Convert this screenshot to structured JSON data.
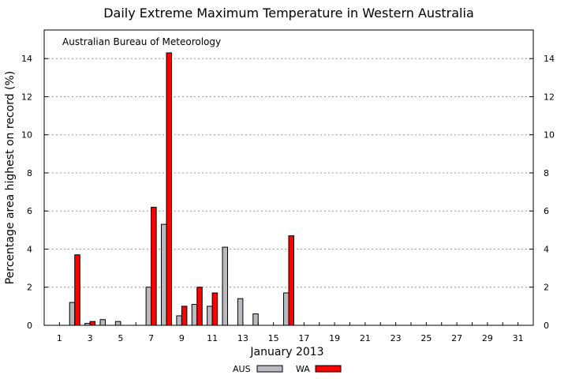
{
  "chart_data": {
    "type": "bar",
    "title": "Daily Extreme Maximum Temperature in Western Australia",
    "annotation": "Australian Bureau of Meteorology",
    "xlabel": "January 2013",
    "ylabel": "Percentage area highest on record (%)",
    "ylim": [
      0,
      15.5
    ],
    "yticks": [
      0,
      2,
      4,
      6,
      8,
      10,
      12,
      14
    ],
    "yticks_right": true,
    "grid": "horizontal dotted",
    "legend_position": "bottom-center",
    "categories": [
      1,
      2,
      3,
      4,
      5,
      6,
      7,
      8,
      9,
      10,
      11,
      12,
      13,
      14,
      15,
      16,
      17,
      18,
      19,
      20,
      21,
      22,
      23,
      24,
      25,
      26,
      27,
      28,
      29,
      30,
      31
    ],
    "xtick_labels": [
      "1",
      "3",
      "5",
      "7",
      "9",
      "11",
      "13",
      "15",
      "17",
      "19",
      "21",
      "23",
      "25",
      "27",
      "29",
      "31"
    ],
    "series": [
      {
        "name": "AUS",
        "color": "#b9b9c0",
        "values": [
          0,
          1.2,
          0.1,
          0.3,
          0.2,
          0,
          2.0,
          5.3,
          0.5,
          1.1,
          1.0,
          4.1,
          1.4,
          0.6,
          0,
          1.7,
          0,
          0,
          0,
          0,
          0,
          0,
          0,
          0,
          0,
          0,
          0,
          0,
          0,
          0,
          0
        ]
      },
      {
        "name": "WA",
        "color": "#ff0000",
        "values": [
          0,
          3.7,
          0.2,
          0,
          0,
          0,
          6.2,
          14.3,
          1.0,
          2.0,
          1.7,
          0,
          0,
          0,
          0,
          4.7,
          0,
          0,
          0,
          0,
          0,
          0,
          0,
          0,
          0,
          0,
          0,
          0,
          0,
          0,
          0
        ]
      }
    ]
  }
}
